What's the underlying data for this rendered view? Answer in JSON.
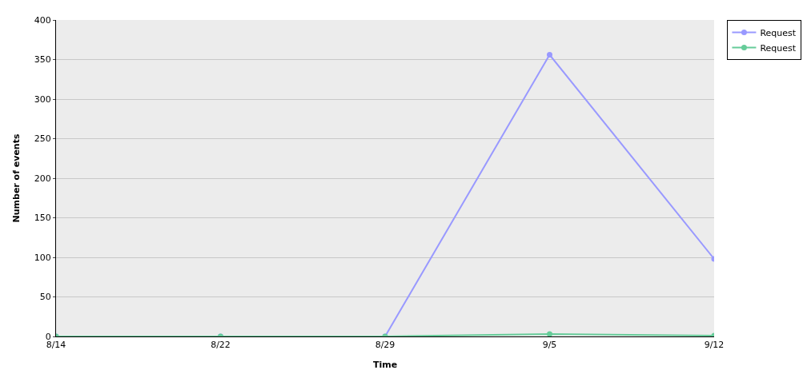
{
  "chart_data": {
    "type": "line",
    "xlabel": "Time",
    "ylabel": "Number of events",
    "categories": [
      "8/14",
      "8/22",
      "8/29",
      "9/5",
      "9/12"
    ],
    "series": [
      {
        "name": "Request",
        "color": "#9999ff",
        "values": [
          0,
          0,
          0,
          356,
          98
        ]
      },
      {
        "name": "Request",
        "color": "#66cc99",
        "values": [
          0,
          0,
          0,
          3,
          1
        ]
      }
    ],
    "ylim": [
      0,
      400
    ],
    "yticks": [
      0,
      50,
      100,
      150,
      200,
      250,
      300,
      350,
      400
    ],
    "grid": "y",
    "legend": "top right",
    "marker": "circle",
    "line_style": "solid"
  }
}
